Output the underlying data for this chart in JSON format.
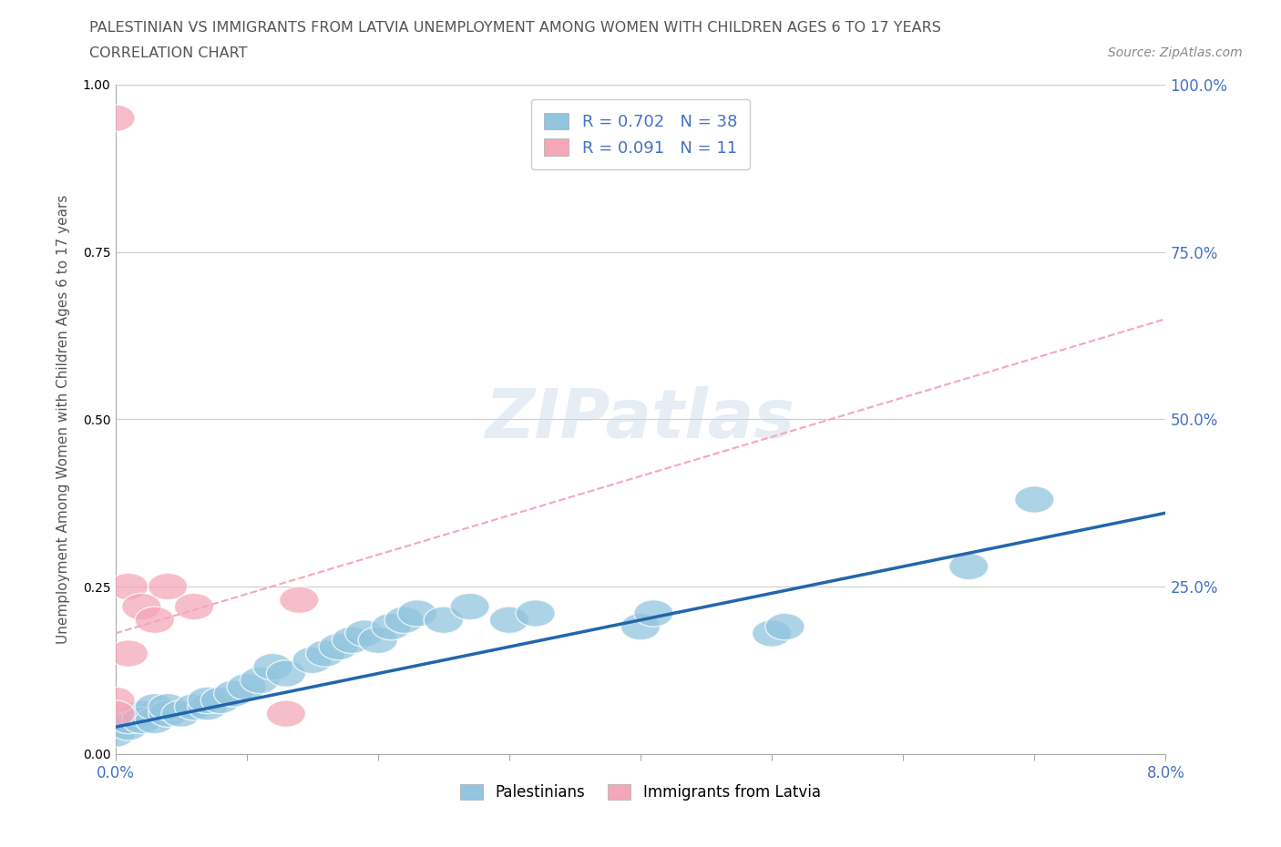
{
  "title_line1": "PALESTINIAN VS IMMIGRANTS FROM LATVIA UNEMPLOYMENT AMONG WOMEN WITH CHILDREN AGES 6 TO 17 YEARS",
  "title_line2": "CORRELATION CHART",
  "source_text": "Source: ZipAtlas.com",
  "ylabel": "Unemployment Among Women with Children Ages 6 to 17 years",
  "xlim": [
    0.0,
    0.08
  ],
  "ylim": [
    0.0,
    1.0
  ],
  "xticks": [
    0.0,
    0.01,
    0.02,
    0.03,
    0.04,
    0.05,
    0.06,
    0.07,
    0.08
  ],
  "xticklabels_show": [
    "0.0%",
    "8.0%"
  ],
  "yticks": [
    0.0,
    0.25,
    0.5,
    0.75,
    1.0
  ],
  "yticklabels_right": [
    "",
    "25.0%",
    "50.0%",
    "75.0%",
    "100.0%"
  ],
  "grid_color": "#cccccc",
  "palestinians_R": 0.702,
  "palestinians_N": 38,
  "latvia_R": 0.091,
  "latvia_N": 11,
  "blue_color": "#92c5de",
  "pink_color": "#f4a7b9",
  "blue_line_color": "#2166ac",
  "pink_line_color": "#d6604d",
  "palestinians_x": [
    0.0,
    0.001,
    0.001,
    0.002,
    0.002,
    0.003,
    0.003,
    0.004,
    0.004,
    0.005,
    0.006,
    0.007,
    0.007,
    0.008,
    0.009,
    0.01,
    0.011,
    0.012,
    0.013,
    0.015,
    0.016,
    0.017,
    0.018,
    0.019,
    0.02,
    0.021,
    0.022,
    0.023,
    0.025,
    0.027,
    0.03,
    0.032,
    0.04,
    0.041,
    0.05,
    0.051,
    0.065,
    0.07
  ],
  "palestinians_y": [
    0.03,
    0.04,
    0.05,
    0.06,
    0.05,
    0.05,
    0.07,
    0.06,
    0.07,
    0.06,
    0.07,
    0.07,
    0.08,
    0.08,
    0.09,
    0.1,
    0.11,
    0.13,
    0.12,
    0.14,
    0.15,
    0.16,
    0.17,
    0.18,
    0.17,
    0.19,
    0.2,
    0.21,
    0.2,
    0.22,
    0.2,
    0.21,
    0.19,
    0.21,
    0.18,
    0.19,
    0.28,
    0.38
  ],
  "latvia_x": [
    0.0,
    0.0,
    0.0,
    0.001,
    0.001,
    0.002,
    0.003,
    0.004,
    0.006,
    0.013,
    0.014
  ],
  "latvia_y": [
    0.95,
    0.08,
    0.06,
    0.25,
    0.15,
    0.22,
    0.2,
    0.25,
    0.22,
    0.06,
    0.23
  ],
  "pink_line_x0": 0.0,
  "pink_line_y0": 0.18,
  "pink_line_x1": 0.015,
  "pink_line_y1": 0.28,
  "blue_line_x0": 0.0,
  "blue_line_y0": 0.04,
  "blue_line_x1": 0.08,
  "blue_line_y1": 0.36
}
